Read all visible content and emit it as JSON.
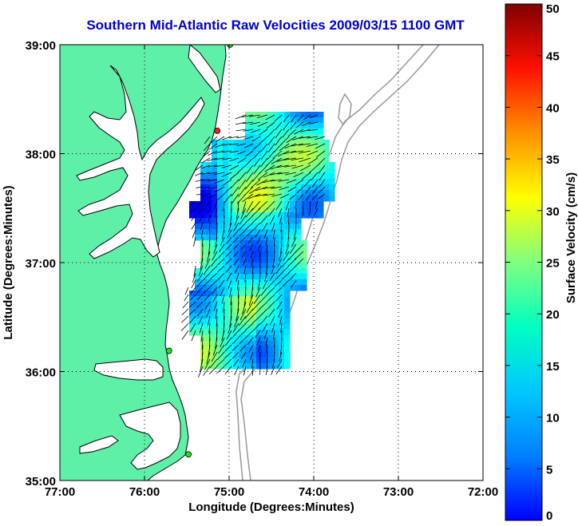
{
  "title": "Southern Mid-Atlantic Raw Velocities 2009/03/15 1100 GMT",
  "map": {
    "x_label": "Longitude (Degrees:Minutes)",
    "y_label": "Latitude (Degrees:Minutes)",
    "lon_range": [
      -77,
      -72
    ],
    "lat_range": [
      35,
      39
    ],
    "x_ticks": [
      {
        "value": -77,
        "label": "77:00"
      },
      {
        "value": -76,
        "label": "76:00"
      },
      {
        "value": -75,
        "label": "75:00"
      },
      {
        "value": -74,
        "label": "74:00"
      },
      {
        "value": -73,
        "label": "73:00"
      },
      {
        "value": -72,
        "label": "72:00"
      }
    ],
    "y_ticks": [
      {
        "value": 39,
        "label": "39:00"
      },
      {
        "value": 38,
        "label": "38:00"
      },
      {
        "value": 37,
        "label": "37:00"
      },
      {
        "value": 36,
        "label": "36:00"
      },
      {
        "value": 35,
        "label": "35:00"
      }
    ],
    "grid": "dotted",
    "land_color": "#5ff0a8",
    "stations": [
      {
        "lon": -75.14,
        "lat": 38.21,
        "color": "#ff2020"
      },
      {
        "lon": -74.99,
        "lat": 39.0,
        "color": "#20e020"
      },
      {
        "lon": -75.71,
        "lat": 36.19,
        "color": "#20e020"
      },
      {
        "lon": -75.48,
        "lat": 35.24,
        "color": "#20e020"
      }
    ]
  },
  "colorbar": {
    "label": "Surface Velocity (cm/s)",
    "min": 0,
    "max": 50,
    "ticks": [
      "0",
      "5",
      "10",
      "15",
      "20",
      "25",
      "30",
      "35",
      "40",
      "45",
      "50"
    ],
    "colormap": "jet"
  }
}
